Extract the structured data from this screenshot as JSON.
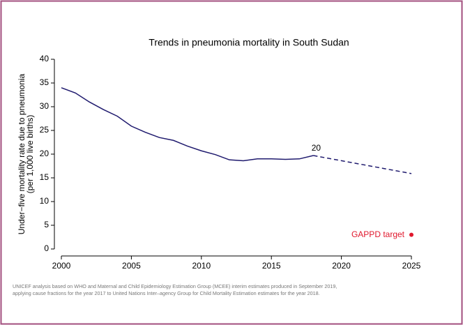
{
  "chart_data": {
    "type": "line",
    "title": "Trends in pneumonia mortality in South Sudan",
    "ylabel": [
      "Under−five mortality rate due to pneumonia",
      "(per 1,000 live births)"
    ],
    "series": [
      {
        "color": "#1f1a6e",
        "linestyle": "solid",
        "x": [
          2000,
          2001,
          2002,
          2003,
          2004,
          2005,
          2006,
          2007,
          2008,
          2009,
          2010,
          2011,
          2012,
          2013,
          2014,
          2015,
          2016,
          2017,
          2018
        ],
        "values": [
          34,
          32.9,
          31,
          29.4,
          28,
          25.9,
          24.6,
          23.5,
          22.9,
          21.7,
          20.7,
          19.9,
          18.8,
          18.6,
          19,
          19,
          18.9,
          19,
          19.7
        ]
      },
      {
        "color": "#1f1a6e",
        "linestyle": "dashed",
        "x": [
          2018,
          2025
        ],
        "values": [
          19.7,
          15.9
        ]
      }
    ],
    "annotation": {
      "text": "20",
      "x": 2018,
      "y": 19.7
    },
    "target": {
      "label": "GAPPD target",
      "x": 2025,
      "value": 3,
      "color": "#e0182d"
    },
    "xlim": [
      2000,
      2025
    ],
    "xticks": [
      2000,
      2005,
      2010,
      2015,
      2020,
      2025
    ],
    "ylim": [
      0,
      40
    ],
    "yticks": [
      0,
      5,
      10,
      15,
      20,
      25,
      30,
      35,
      40
    ],
    "note": [
      "UNICEF analysis based on WHO and Maternal and Child Epidemiology Estimation Group (MCEE) interim estimates produced in September 2019,",
      "applying cause fractions for the year 2017 to United Nations Inter–agency Group for Child Mortality Estimation estimates for the year 2018."
    ]
  }
}
